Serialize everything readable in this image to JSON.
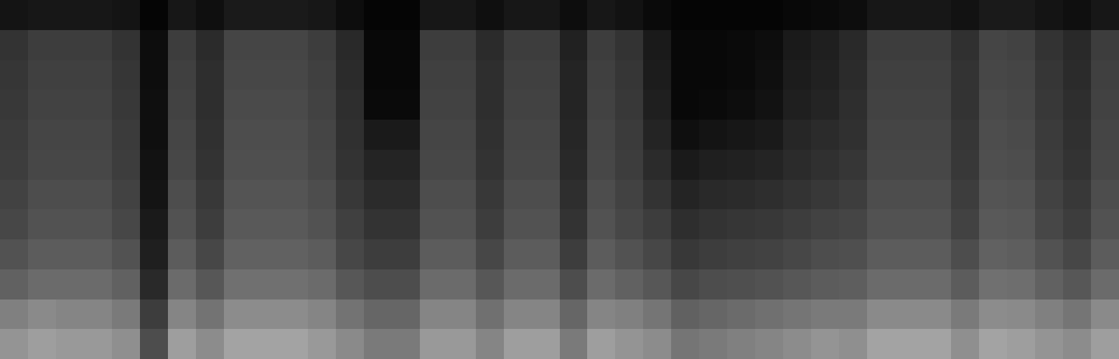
{
  "chart_data": {
    "type": "heatmap",
    "tick_labels": false,
    "color": "#ffffff",
    "zlim": [
      0,
      100
    ],
    "cells": [
      [
        8,
        9,
        9,
        9,
        8,
        2,
        9,
        6,
        10,
        10,
        10,
        9,
        5,
        2,
        2,
        9,
        9,
        6,
        9,
        9,
        5,
        9,
        7,
        4,
        2,
        2,
        2,
        2,
        3,
        4,
        5,
        9,
        9,
        9,
        7,
        10,
        10,
        8,
        6,
        9
      ],
      [
        20,
        24,
        24,
        24,
        20,
        5,
        24,
        17,
        27,
        27,
        27,
        24,
        16,
        3,
        3,
        24,
        24,
        17,
        24,
        24,
        13,
        24,
        20,
        10,
        3,
        3,
        4,
        5,
        10,
        12,
        16,
        24,
        24,
        24,
        19,
        27,
        26,
        20,
        16,
        24
      ],
      [
        21,
        25,
        25,
        25,
        21,
        5,
        25,
        18,
        28,
        28,
        28,
        25,
        17,
        3,
        3,
        25,
        25,
        18,
        25,
        25,
        14,
        25,
        21,
        11,
        3,
        3,
        4,
        6,
        11,
        13,
        17,
        25,
        25,
        25,
        20,
        28,
        27,
        21,
        17,
        25
      ],
      [
        22,
        26,
        26,
        26,
        22,
        6,
        26,
        18,
        29,
        29,
        29,
        26,
        18,
        4,
        4,
        26,
        26,
        18,
        26,
        26,
        14,
        26,
        22,
        12,
        3,
        4,
        5,
        7,
        12,
        14,
        18,
        26,
        26,
        26,
        20,
        29,
        28,
        22,
        18,
        26
      ],
      [
        23,
        27,
        27,
        27,
        23,
        6,
        27,
        19,
        30,
        30,
        30,
        27,
        19,
        10,
        10,
        27,
        27,
        19,
        27,
        27,
        15,
        27,
        23,
        14,
        6,
        8,
        9,
        10,
        15,
        17,
        19,
        27,
        27,
        27,
        21,
        30,
        29,
        23,
        19,
        27
      ],
      [
        24,
        28,
        28,
        28,
        24,
        7,
        28,
        20,
        31,
        31,
        31,
        28,
        20,
        14,
        14,
        28,
        28,
        20,
        28,
        28,
        16,
        28,
        24,
        17,
        10,
        12,
        13,
        14,
        17,
        19,
        21,
        28,
        28,
        28,
        22,
        31,
        30,
        24,
        20,
        28
      ],
      [
        26,
        30,
        30,
        30,
        26,
        8,
        30,
        22,
        33,
        33,
        33,
        30,
        22,
        17,
        17,
        30,
        30,
        22,
        30,
        30,
        18,
        30,
        26,
        20,
        14,
        16,
        17,
        18,
        20,
        22,
        24,
        30,
        30,
        30,
        24,
        33,
        32,
        26,
        22,
        30
      ],
      [
        28,
        32,
        32,
        32,
        28,
        10,
        32,
        24,
        35,
        35,
        35,
        32,
        25,
        20,
        20,
        32,
        32,
        24,
        32,
        32,
        20,
        32,
        28,
        24,
        18,
        20,
        21,
        22,
        24,
        26,
        27,
        32,
        32,
        32,
        26,
        35,
        34,
        28,
        24,
        32
      ],
      [
        32,
        36,
        36,
        36,
        32,
        12,
        36,
        28,
        38,
        38,
        38,
        36,
        28,
        24,
        24,
        36,
        36,
        28,
        36,
        36,
        24,
        36,
        32,
        28,
        22,
        24,
        25,
        26,
        28,
        30,
        31,
        36,
        36,
        36,
        30,
        38,
        37,
        32,
        28,
        36
      ],
      [
        38,
        42,
        42,
        42,
        38,
        16,
        42,
        34,
        44,
        44,
        44,
        42,
        34,
        30,
        30,
        42,
        42,
        34,
        42,
        42,
        30,
        42,
        38,
        34,
        28,
        30,
        31,
        32,
        34,
        36,
        37,
        42,
        42,
        42,
        36,
        44,
        43,
        38,
        34,
        42
      ],
      [
        50,
        54,
        52,
        52,
        48,
        24,
        52,
        45,
        55,
        55,
        55,
        52,
        45,
        40,
        40,
        52,
        52,
        44,
        52,
        52,
        40,
        52,
        50,
        46,
        38,
        40,
        42,
        44,
        46,
        48,
        48,
        54,
        54,
        54,
        48,
        55,
        54,
        50,
        46,
        54
      ],
      [
        58,
        62,
        60,
        60,
        56,
        30,
        62,
        55,
        64,
        64,
        64,
        60,
        54,
        48,
        48,
        60,
        60,
        52,
        62,
        62,
        48,
        62,
        58,
        55,
        46,
        48,
        50,
        52,
        55,
        58,
        56,
        64,
        64,
        64,
        56,
        64,
        62,
        58,
        55,
        62
      ]
    ]
  }
}
